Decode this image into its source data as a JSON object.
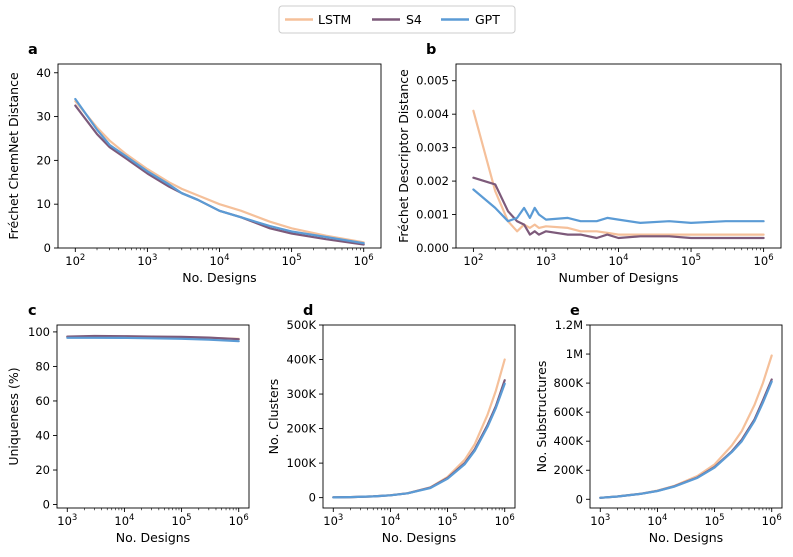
{
  "legend": {
    "entries": [
      "LSTM",
      "S4",
      "GPT"
    ]
  },
  "colors": {
    "LSTM": "#f5c09a",
    "S4": "#7d5a7a",
    "GPT": "#5b9bd5"
  },
  "chart_data": [
    {
      "panel": "a",
      "type": "line",
      "xscale": "log",
      "xlabel": "No. Designs",
      "ylabel": "Fréchet ChemNet Distance",
      "xlim": [
        100,
        1000000
      ],
      "ylim": [
        0,
        42
      ],
      "x_ticks": [
        100,
        1000,
        10000,
        100000,
        1000000
      ],
      "x_tick_labels": [
        {
          "base": "10",
          "exp": "2"
        },
        {
          "base": "10",
          "exp": "3"
        },
        {
          "base": "10",
          "exp": "4"
        },
        {
          "base": "10",
          "exp": "5"
        },
        {
          "base": "10",
          "exp": "6"
        }
      ],
      "y_ticks": [
        0,
        10,
        20,
        30,
        40
      ],
      "y_tick_labels": [
        "0",
        "10",
        "20",
        "30",
        "40"
      ],
      "series": [
        {
          "name": "LSTM",
          "x": [
            100,
            200,
            300,
            500,
            1000,
            2000,
            3000,
            5000,
            10000,
            20000,
            50000,
            100000,
            300000,
            1000000
          ],
          "values": [
            33.5,
            27.5,
            24.5,
            21.5,
            18,
            15,
            13.5,
            12,
            10,
            8.5,
            6,
            4.5,
            2.8,
            1.3
          ]
        },
        {
          "name": "S4",
          "x": [
            100,
            200,
            300,
            500,
            1000,
            2000,
            3000,
            5000,
            10000,
            20000,
            50000,
            100000,
            300000,
            1000000
          ],
          "values": [
            32.5,
            26,
            23,
            20.5,
            17,
            14,
            12.5,
            11,
            8.5,
            7,
            4.5,
            3.3,
            2,
            0.8
          ]
        },
        {
          "name": "GPT",
          "x": [
            100,
            200,
            300,
            500,
            1000,
            2000,
            3000,
            5000,
            10000,
            20000,
            50000,
            100000,
            300000,
            1000000
          ],
          "values": [
            34,
            27,
            23.5,
            21,
            17.5,
            14.5,
            12.5,
            11,
            8.5,
            7,
            5,
            3.8,
            2.5,
            1.1
          ]
        }
      ]
    },
    {
      "panel": "b",
      "type": "line",
      "xscale": "log",
      "xlabel": "Number of Designs",
      "ylabel": "Fréchet Descriptor Distance",
      "xlim": [
        100,
        1000000
      ],
      "ylim": [
        0,
        0.0055
      ],
      "x_ticks": [
        100,
        1000,
        10000,
        100000,
        1000000
      ],
      "x_tick_labels": [
        {
          "base": "10",
          "exp": "2"
        },
        {
          "base": "10",
          "exp": "3"
        },
        {
          "base": "10",
          "exp": "4"
        },
        {
          "base": "10",
          "exp": "5"
        },
        {
          "base": "10",
          "exp": "6"
        }
      ],
      "y_ticks": [
        0,
        0.001,
        0.002,
        0.003,
        0.004,
        0.005
      ],
      "y_tick_labels": [
        "0.000",
        "0.001",
        "0.002",
        "0.003",
        "0.004",
        "0.005"
      ],
      "series": [
        {
          "name": "LSTM",
          "x": [
            100,
            200,
            300,
            400,
            500,
            600,
            700,
            800,
            1000,
            2000,
            3000,
            5000,
            7000,
            10000,
            20000,
            50000,
            100000,
            300000,
            1000000
          ],
          "values": [
            0.0041,
            0.0017,
            0.0008,
            0.0005,
            0.0007,
            0.0006,
            0.0007,
            0.0006,
            0.00065,
            0.0006,
            0.0005,
            0.0005,
            0.00045,
            0.0004,
            0.0004,
            0.0004,
            0.0004,
            0.0004,
            0.0004
          ]
        },
        {
          "name": "S4",
          "x": [
            100,
            200,
            300,
            400,
            500,
            600,
            700,
            800,
            1000,
            2000,
            3000,
            5000,
            7000,
            10000,
            20000,
            50000,
            100000,
            300000,
            1000000
          ],
          "values": [
            0.0021,
            0.0019,
            0.0011,
            0.0008,
            0.0007,
            0.0004,
            0.0005,
            0.0004,
            0.0005,
            0.0004,
            0.0004,
            0.0003,
            0.0004,
            0.0003,
            0.00035,
            0.00035,
            0.0003,
            0.0003,
            0.0003
          ]
        },
        {
          "name": "GPT",
          "x": [
            100,
            200,
            300,
            400,
            500,
            600,
            700,
            800,
            1000,
            2000,
            3000,
            5000,
            7000,
            10000,
            20000,
            50000,
            100000,
            300000,
            1000000
          ],
          "values": [
            0.00175,
            0.0012,
            0.0008,
            0.0009,
            0.0012,
            0.0009,
            0.0012,
            0.001,
            0.00085,
            0.0009,
            0.0008,
            0.0008,
            0.0009,
            0.00085,
            0.00075,
            0.0008,
            0.00075,
            0.0008,
            0.0008
          ]
        }
      ]
    },
    {
      "panel": "c",
      "type": "line",
      "xscale": "log",
      "xlabel": "No. Designs",
      "ylabel": "Uniqueness (%)",
      "xlim": [
        1000,
        1000000
      ],
      "ylim": [
        -2,
        104
      ],
      "x_ticks": [
        1000,
        10000,
        100000,
        1000000
      ],
      "x_tick_labels": [
        {
          "base": "10",
          "exp": "3"
        },
        {
          "base": "10",
          "exp": "4"
        },
        {
          "base": "10",
          "exp": "5"
        },
        {
          "base": "10",
          "exp": "6"
        }
      ],
      "y_ticks": [
        0,
        20,
        40,
        60,
        80,
        100
      ],
      "y_tick_labels": [
        "0",
        "20",
        "40",
        "60",
        "80",
        "100"
      ],
      "series": [
        {
          "name": "LSTM",
          "x": [
            1000,
            3000,
            10000,
            30000,
            100000,
            300000,
            1000000
          ],
          "values": [
            97.2,
            97.3,
            97.2,
            97.1,
            96.9,
            96.6,
            96
          ]
        },
        {
          "name": "S4",
          "x": [
            1000,
            3000,
            10000,
            30000,
            100000,
            300000,
            1000000
          ],
          "values": [
            97.3,
            97.6,
            97.5,
            97.3,
            97.1,
            96.7,
            95.8
          ]
        },
        {
          "name": "GPT",
          "x": [
            1000,
            3000,
            10000,
            30000,
            100000,
            300000,
            1000000
          ],
          "values": [
            96.6,
            96.6,
            96.5,
            96.3,
            96,
            95.5,
            94.6
          ]
        }
      ]
    },
    {
      "panel": "d",
      "type": "line",
      "xscale": "log",
      "xlabel": "No. Designs",
      "ylabel": "No. Clusters",
      "xlim": [
        1000,
        1000000
      ],
      "ylim": [
        -30000,
        500000
      ],
      "x_ticks": [
        1000,
        10000,
        100000,
        1000000
      ],
      "x_tick_labels": [
        {
          "base": "10",
          "exp": "3"
        },
        {
          "base": "10",
          "exp": "4"
        },
        {
          "base": "10",
          "exp": "5"
        },
        {
          "base": "10",
          "exp": "6"
        }
      ],
      "y_ticks": [
        0,
        100000,
        200000,
        300000,
        400000,
        500000
      ],
      "y_tick_labels": [
        "0",
        "100K",
        "200K",
        "300K",
        "400K",
        "500K"
      ],
      "series": [
        {
          "name": "LSTM",
          "x": [
            1000,
            2000,
            5000,
            10000,
            20000,
            50000,
            100000,
            200000,
            300000,
            500000,
            700000,
            1000000
          ],
          "values": [
            800,
            1500,
            3600,
            7000,
            13000,
            30000,
            60000,
            110000,
            155000,
            240000,
            310000,
            400000
          ]
        },
        {
          "name": "S4",
          "x": [
            1000,
            2000,
            5000,
            10000,
            20000,
            50000,
            100000,
            200000,
            300000,
            500000,
            700000,
            1000000
          ],
          "values": [
            800,
            1500,
            3500,
            6800,
            12500,
            29000,
            57000,
            100000,
            140000,
            210000,
            265000,
            340000
          ]
        },
        {
          "name": "GPT",
          "x": [
            1000,
            2000,
            5000,
            10000,
            20000,
            50000,
            100000,
            200000,
            300000,
            500000,
            700000,
            1000000
          ],
          "values": [
            800,
            1500,
            3500,
            6800,
            12500,
            28000,
            55000,
            97000,
            136000,
            205000,
            260000,
            330000
          ]
        }
      ]
    },
    {
      "panel": "e",
      "type": "line",
      "xscale": "log",
      "xlabel": "No. Designs",
      "ylabel": "No. Substructures",
      "xlim": [
        1000,
        1000000
      ],
      "ylim": [
        -60000,
        1200000
      ],
      "x_ticks": [
        1000,
        10000,
        100000,
        1000000
      ],
      "x_tick_labels": [
        {
          "base": "10",
          "exp": "3"
        },
        {
          "base": "10",
          "exp": "4"
        },
        {
          "base": "10",
          "exp": "5"
        },
        {
          "base": "10",
          "exp": "6"
        }
      ],
      "y_ticks": [
        0,
        200000,
        400000,
        600000,
        800000,
        1000000,
        1200000
      ],
      "y_tick_labels": [
        "0",
        "200K",
        "400K",
        "600K",
        "800K",
        "1M",
        "1.2M"
      ],
      "series": [
        {
          "name": "LSTM",
          "x": [
            1000,
            2000,
            5000,
            10000,
            20000,
            50000,
            100000,
            200000,
            300000,
            500000,
            700000,
            1000000
          ],
          "values": [
            10000,
            20000,
            38000,
            60000,
            93000,
            160000,
            240000,
            370000,
            470000,
            650000,
            800000,
            990000
          ]
        },
        {
          "name": "S4",
          "x": [
            1000,
            2000,
            5000,
            10000,
            20000,
            50000,
            100000,
            200000,
            300000,
            500000,
            700000,
            1000000
          ],
          "values": [
            10000,
            19000,
            37000,
            58000,
            90000,
            150000,
            222000,
            330000,
            410000,
            550000,
            680000,
            825000
          ]
        },
        {
          "name": "GPT",
          "x": [
            1000,
            2000,
            5000,
            10000,
            20000,
            50000,
            100000,
            200000,
            300000,
            500000,
            700000,
            1000000
          ],
          "values": [
            10000,
            19000,
            37000,
            57000,
            88000,
            148000,
            218000,
            325000,
            400000,
            540000,
            665000,
            810000
          ]
        }
      ]
    }
  ]
}
